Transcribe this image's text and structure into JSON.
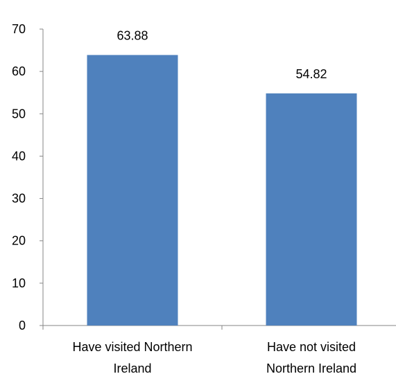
{
  "chart_data": {
    "type": "bar",
    "title": "",
    "xlabel": "",
    "ylabel": "",
    "categories": [
      [
        "Have visited Northern",
        "Ireland"
      ],
      [
        "Have not visited",
        "Northern Ireland"
      ]
    ],
    "values": [
      63.88,
      54.82
    ],
    "data_labels": [
      "63.88",
      "54.82"
    ],
    "ylim": [
      0,
      70
    ],
    "yticks": [
      "0",
      "10",
      "20",
      "30",
      "40",
      "50",
      "60",
      "70"
    ],
    "grid": false,
    "legend": "none",
    "bar_color": "#4f81bd",
    "axis_color": "#868686"
  }
}
